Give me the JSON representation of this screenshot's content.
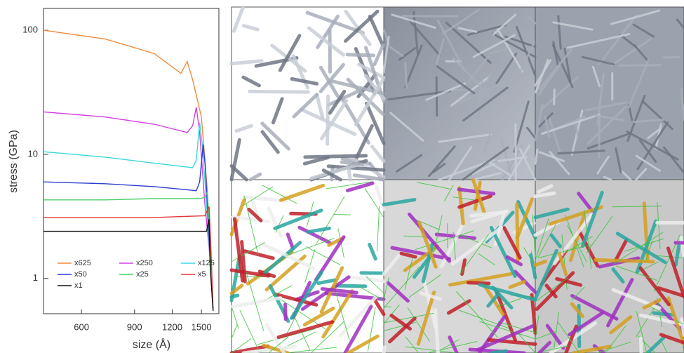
{
  "chart_data": {
    "type": "line",
    "x_label": "size (Å)",
    "y_label": "stress (GPa)",
    "xscale": "log",
    "yscale": "log",
    "xlim": [
      449,
      1714
    ],
    "ylim": [
      0.52,
      150
    ],
    "xticks": [
      600,
      900,
      1200,
      1500
    ],
    "yticks": [
      1,
      10,
      100
    ],
    "legend": "lower left",
    "series": [
      {
        "name": "x625",
        "color": "#f08a3c",
        "x": [
          449,
          719,
          1045,
          1283,
          1346,
          1403,
          1500,
          1571,
          1604,
          1640
        ],
        "values": [
          100,
          85,
          65,
          45,
          56,
          40,
          20,
          5,
          1.5,
          0.55
        ]
      },
      {
        "name": "x250",
        "color": "#d23fe0",
        "x": [
          449,
          719,
          1045,
          1346,
          1403,
          1442,
          1480,
          1540,
          1600,
          1640
        ],
        "values": [
          22,
          20,
          17.5,
          15,
          17,
          24,
          15,
          4,
          1.5,
          0.55
        ]
      },
      {
        "name": "x125",
        "color": "#3ad8e0",
        "x": [
          449,
          719,
          1045,
          1403,
          1442,
          1480,
          1510,
          1560,
          1600,
          1640
        ],
        "values": [
          10.5,
          9.5,
          8.5,
          7.8,
          9,
          18,
          12,
          4,
          1.5,
          0.55
        ]
      },
      {
        "name": "x50",
        "color": "#2a3fd0",
        "x": [
          449,
          719,
          1045,
          1442,
          1480,
          1520,
          1545,
          1580,
          1610,
          1640
        ],
        "values": [
          6,
          5.8,
          5.5,
          5.1,
          6,
          12,
          8,
          3,
          1.2,
          0.55
        ]
      },
      {
        "name": "x25",
        "color": "#4fd06a",
        "x": [
          449,
          719,
          1045,
          1480,
          1540,
          1570,
          1600,
          1640
        ],
        "values": [
          4.3,
          4.3,
          4.4,
          4.4,
          4.5,
          5,
          2,
          0.55
        ]
      },
      {
        "name": "x5",
        "color": "#e03a3a",
        "x": [
          449,
          719,
          1045,
          1540,
          1590,
          1610,
          1640
        ],
        "values": [
          3.1,
          3.1,
          3.1,
          3.2,
          3.8,
          2,
          0.55
        ]
      },
      {
        "name": "x1",
        "color": "#111111",
        "x": [
          449,
          719,
          1045,
          1560,
          1590,
          1605,
          1640
        ],
        "values": [
          2.4,
          2.4,
          2.4,
          2.4,
          3,
          1.2,
          0.55
        ]
      }
    ]
  }
}
